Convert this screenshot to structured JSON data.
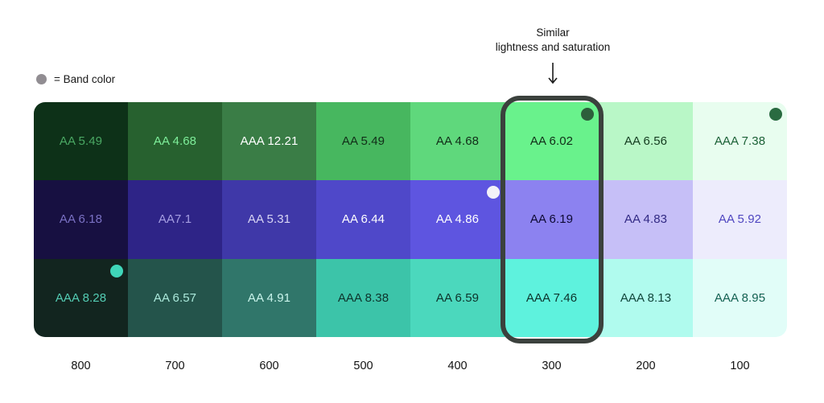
{
  "chart_data": {
    "type": "heatmap",
    "title": "",
    "columns": [
      "800",
      "700",
      "600",
      "500",
      "400",
      "300",
      "200",
      "100"
    ],
    "legend": {
      "label": "= Band color",
      "dot_color": "#918d92"
    },
    "annotation": {
      "line1": "Similar",
      "line2": "lightness and saturation",
      "target_column": "300"
    },
    "highlight": {
      "column": "300",
      "border_color": "#3b413d"
    },
    "rows": [
      {
        "name": "green",
        "cells": [
          {
            "label": "AA 5.49",
            "wcag": "AA",
            "value": 5.49,
            "bg": "#0d3118",
            "fg": "#4aa863"
          },
          {
            "label": "AA 4.68",
            "wcag": "AA",
            "value": 4.68,
            "bg": "#27612f",
            "fg": "#7eee9a"
          },
          {
            "label": "AAA 12.21",
            "wcag": "AAA",
            "value": 12.21,
            "bg": "#3a7d46",
            "fg": "#ffffff"
          },
          {
            "label": "AA 5.49",
            "wcag": "AA",
            "value": 5.49,
            "bg": "#47b75f",
            "fg": "#112d18"
          },
          {
            "label": "AA 4.68",
            "wcag": "AA",
            "value": 4.68,
            "bg": "#5fd87c",
            "fg": "#112d18"
          },
          {
            "label": "AA 6.02",
            "wcag": "AA",
            "value": 6.02,
            "bg": "#69f28c",
            "fg": "#112d18",
            "dot": "#2d5f3b"
          },
          {
            "label": "AA 6.56",
            "wcag": "AA",
            "value": 6.56,
            "bg": "#b9f7c7",
            "fg": "#143c20"
          },
          {
            "label": "AAA 7.38",
            "wcag": "AAA",
            "value": 7.38,
            "bg": "#e8fdef",
            "fg": "#1b6136",
            "dot": "#2a6b41"
          }
        ]
      },
      {
        "name": "purple",
        "cells": [
          {
            "label": "AA 6.18",
            "wcag": "AA",
            "value": 6.18,
            "bg": "#171041",
            "fg": "#7a71c4"
          },
          {
            "label": "AA7.1",
            "wcag": "AA",
            "value": 7.1,
            "bg": "#2e2487",
            "fg": "#a59ee2"
          },
          {
            "label": "AA 5.31",
            "wcag": "AA",
            "value": 5.31,
            "bg": "#3f38a8",
            "fg": "#d8d5f4"
          },
          {
            "label": "AA 6.44",
            "wcag": "AA",
            "value": 6.44,
            "bg": "#4f48c9",
            "fg": "#ffffff"
          },
          {
            "label": "AA 4.86",
            "wcag": "AA",
            "value": 4.86,
            "bg": "#5e55e0",
            "fg": "#ffffff",
            "dot": "#f3f1f8"
          },
          {
            "label": "AA 6.19",
            "wcag": "AA",
            "value": 6.19,
            "bg": "#8c82f0",
            "fg": "#0e0a33"
          },
          {
            "label": "AA 4.83",
            "wcag": "AA",
            "value": 4.83,
            "bg": "#c6bff7",
            "fg": "#322a84"
          },
          {
            "label": "AA 5.92",
            "wcag": "AA",
            "value": 5.92,
            "bg": "#edecfc",
            "fg": "#4f46c0"
          }
        ]
      },
      {
        "name": "teal",
        "cells": [
          {
            "label": "AAA 8.28",
            "wcag": "AAA",
            "value": 8.28,
            "bg": "#12251f",
            "fg": "#54cdb4",
            "dot": "#3fd6b9"
          },
          {
            "label": "AA 6.57",
            "wcag": "AA",
            "value": 6.57,
            "bg": "#24544b",
            "fg": "#abe9db"
          },
          {
            "label": "AA 4.91",
            "wcag": "AA",
            "value": 4.91,
            "bg": "#30766a",
            "fg": "#c9f4eb"
          },
          {
            "label": "AAA 8.38",
            "wcag": "AAA",
            "value": 8.38,
            "bg": "#3cc4a9",
            "fg": "#0d332b"
          },
          {
            "label": "AA 6.59",
            "wcag": "AA",
            "value": 6.59,
            "bg": "#4bd8bd",
            "fg": "#0d332b"
          },
          {
            "label": "AAA 7.46",
            "wcag": "AAA",
            "value": 7.46,
            "bg": "#5ef2dd",
            "fg": "#0d332b"
          },
          {
            "label": "AAA 8.13",
            "wcag": "AAA",
            "value": 8.13,
            "bg": "#b0fbee",
            "fg": "#10463a"
          },
          {
            "label": "AAA 8.95",
            "wcag": "AAA",
            "value": 8.95,
            "bg": "#e1fdf8",
            "fg": "#136152"
          }
        ]
      }
    ]
  }
}
